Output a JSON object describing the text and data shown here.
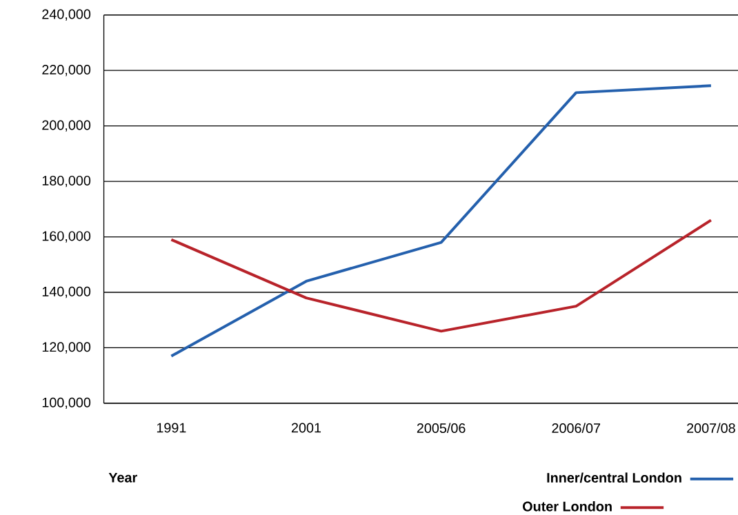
{
  "chart_data": {
    "type": "line",
    "xlabel": "Year",
    "categories": [
      "1991",
      "2001",
      "2005/06",
      "2006/07",
      "2007/08"
    ],
    "series": [
      {
        "name": "Inner/central London",
        "color": "#2460ad",
        "values": [
          117000,
          144000,
          158000,
          212000,
          214500
        ]
      },
      {
        "name": "Outer London",
        "color": "#b8232a",
        "values": [
          159000,
          138000,
          126000,
          135000,
          166000
        ]
      }
    ],
    "ylim": [
      100000,
      240000
    ],
    "yticks": [
      {
        "value": 100000,
        "label": "100,000"
      },
      {
        "value": 120000,
        "label": "120,000"
      },
      {
        "value": 140000,
        "label": "140,000"
      },
      {
        "value": 160000,
        "label": "160,000"
      },
      {
        "value": 180000,
        "label": "180,000"
      },
      {
        "value": 200000,
        "label": "200,000"
      },
      {
        "value": 220000,
        "label": "220,000"
      },
      {
        "value": 240000,
        "label": "240,000"
      }
    ],
    "grid": "y",
    "legend": "bottom right",
    "marker": "none",
    "line_style": "solid"
  }
}
